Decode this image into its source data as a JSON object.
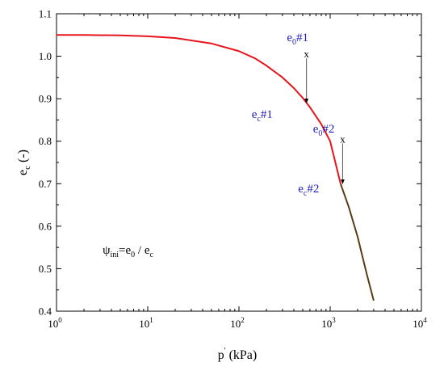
{
  "chart_data": {
    "type": "line",
    "title": "",
    "xlabel": {
      "main": "p",
      "sup": "'",
      "rest": " (kPa)"
    },
    "ylabel": {
      "main": "e",
      "sub": "c",
      "rest": " (-)"
    },
    "xscale": "log",
    "xlim": [
      1,
      10000
    ],
    "ylim": [
      0.4,
      1.1
    ],
    "x_ticks": [
      {
        "base": "10",
        "exp": "0",
        "value": 1
      },
      {
        "base": "10",
        "exp": "1",
        "value": 10
      },
      {
        "base": "10",
        "exp": "2",
        "value": 100
      },
      {
        "base": "10",
        "exp": "3",
        "value": 1000
      },
      {
        "base": "10",
        "exp": "4",
        "value": 10000
      }
    ],
    "y_ticks": [
      "0.4",
      "0.5",
      "0.6",
      "0.7",
      "0.8",
      "0.9",
      "1.0",
      "1.1"
    ],
    "grid": false,
    "series": [
      {
        "color": "#e8141c",
        "x": [
          1,
          2,
          5,
          10,
          20,
          50,
          100,
          150,
          200,
          300,
          400,
          500,
          600,
          800,
          1000,
          1300
        ],
        "y": [
          1.05,
          1.05,
          1.049,
          1.047,
          1.043,
          1.03,
          1.012,
          0.995,
          0.978,
          0.95,
          0.925,
          0.902,
          0.88,
          0.84,
          0.8,
          0.7
        ]
      },
      {
        "color": "#5c3a14",
        "x": [
          1300,
          1600,
          2000,
          2500,
          3000
        ],
        "y": [
          0.7,
          0.645,
          0.575,
          0.49,
          0.425
        ]
      }
    ],
    "annotations": [
      {
        "id": "e0-1",
        "text": "e",
        "sub": "0",
        "rest": "#1",
        "x": 440,
        "y": 1.035
      },
      {
        "id": "ec-1",
        "text": "e",
        "sub": "c",
        "rest": "#1",
        "x": 180,
        "y": 0.855
      },
      {
        "id": "e0-2",
        "text": "e",
        "sub": "0",
        "rest": "#2",
        "x": 850,
        "y": 0.82
      },
      {
        "id": "ec-2",
        "text": "e",
        "sub": "c",
        "rest": "#2",
        "x": 580,
        "y": 0.68
      }
    ],
    "arrows": [
      {
        "id": "arrow-1",
        "x": 550,
        "y_from": 0.995,
        "y_to": 0.89,
        "mark": "x"
      },
      {
        "id": "arrow-2",
        "x": 1370,
        "y_from": 0.795,
        "y_to": 0.7,
        "mark": "x"
      }
    ],
    "formula": {
      "psi": "ψ",
      "psi_sub": "ini",
      "eq": "=e",
      "e0_sub": "0",
      "slash": " / e",
      "ec_sub": "c",
      "x": 3.2,
      "y": 0.535
    }
  }
}
